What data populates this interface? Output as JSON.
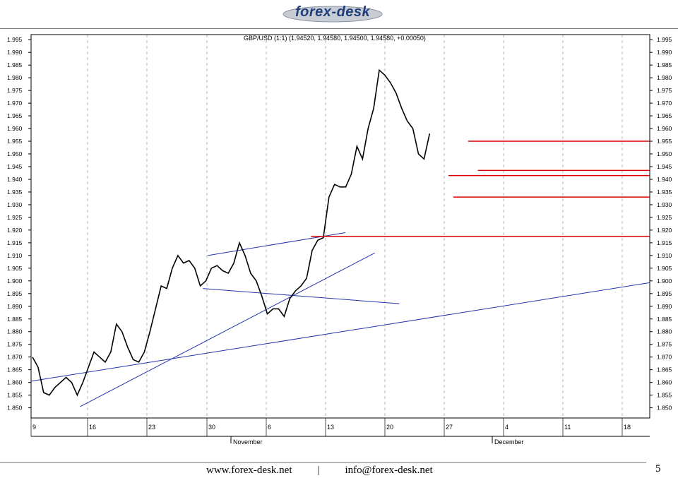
{
  "header": {
    "logo_text": "forex-desk"
  },
  "footer": {
    "website": "www.forex-desk.net",
    "separator": "|",
    "email": "info@forex-desk.net",
    "page_number": "5"
  },
  "colors": {
    "price": "#000000",
    "trendline": "#2233aa",
    "level": "#dd0000",
    "grid": "#9a9a9a"
  },
  "chart_data": {
    "type": "line",
    "title": "GBP/USD (1:1) (1.94520, 1.94580, 1.94500, 1.94580, +0.00050)",
    "ylim": [
      1.846,
      1.997
    ],
    "y_ticks": [
      "1.995",
      "1.990",
      "1.985",
      "1.980",
      "1.975",
      "1.970",
      "1.965",
      "1.960",
      "1.955",
      "1.950",
      "1.945",
      "1.940",
      "1.935",
      "1.930",
      "1.925",
      "1.920",
      "1.915",
      "1.910",
      "1.905",
      "1.900",
      "1.895",
      "1.890",
      "1.885",
      "1.880",
      "1.875",
      "1.870",
      "1.865",
      "1.860",
      "1.855",
      "1.850"
    ],
    "x_ticks": [
      "9",
      "16",
      "23",
      "30",
      "6",
      "13",
      "20",
      "27",
      "4",
      "11",
      "18"
    ],
    "month_labels": [
      "November",
      "December"
    ],
    "grid": true,
    "x": [
      0,
      1,
      2,
      3,
      4,
      5,
      6,
      7,
      8,
      9,
      10,
      11,
      12,
      13,
      14,
      15,
      16,
      17,
      18,
      19,
      20,
      21,
      22,
      23,
      24,
      25,
      26,
      27,
      28,
      29,
      30,
      31,
      32,
      33,
      34,
      35,
      36,
      37,
      38,
      39,
      40,
      41,
      42,
      43,
      44,
      45,
      46,
      47,
      48,
      49,
      50,
      51,
      52,
      53,
      54,
      55,
      56,
      57,
      58,
      59,
      60,
      61,
      62,
      63,
      64,
      65,
      66,
      67,
      68,
      69,
      70,
      71
    ],
    "price": [
      1.87,
      1.866,
      1.856,
      1.855,
      1.858,
      1.86,
      1.862,
      1.86,
      1.855,
      1.86,
      1.866,
      1.872,
      1.87,
      1.868,
      1.872,
      1.883,
      1.88,
      1.874,
      1.869,
      1.868,
      1.872,
      1.88,
      1.889,
      1.898,
      1.897,
      1.905,
      1.91,
      1.907,
      1.908,
      1.905,
      1.898,
      1.9,
      1.905,
      1.906,
      1.904,
      1.903,
      1.907,
      1.915,
      1.91,
      1.903,
      1.9,
      1.894,
      1.887,
      1.889,
      1.889,
      1.886,
      1.893,
      1.896,
      1.898,
      1.901,
      1.912,
      1.916,
      1.917,
      1.933,
      1.938,
      1.937,
      1.937,
      1.942,
      1.953,
      1.948,
      1.96,
      1.968,
      1.983,
      1.981,
      1.978,
      1.974,
      1.968,
      1.963,
      1.96,
      1.95,
      1.948,
      1.958
    ],
    "trendlines": [
      {
        "x": [
          0,
          126
        ],
        "y": [
          1.8605,
          1.8993
        ]
      },
      {
        "x": [
          10,
          70
        ],
        "y": [
          1.8505,
          1.911
        ]
      },
      {
        "x": [
          36,
          64
        ],
        "y": [
          1.91,
          1.919
        ]
      },
      {
        "x": [
          35,
          75
        ],
        "y": [
          1.897,
          1.891
        ]
      }
    ],
    "resistance_levels": [
      {
        "y": 1.9175,
        "x": [
          57,
          126
        ]
      },
      {
        "y": 1.933,
        "x": [
          86,
          126
        ]
      },
      {
        "y": 1.9415,
        "x": [
          85,
          126
        ]
      },
      {
        "y": 1.9435,
        "x": [
          91,
          126
        ]
      },
      {
        "y": 1.955,
        "x": [
          89,
          126
        ]
      }
    ]
  }
}
